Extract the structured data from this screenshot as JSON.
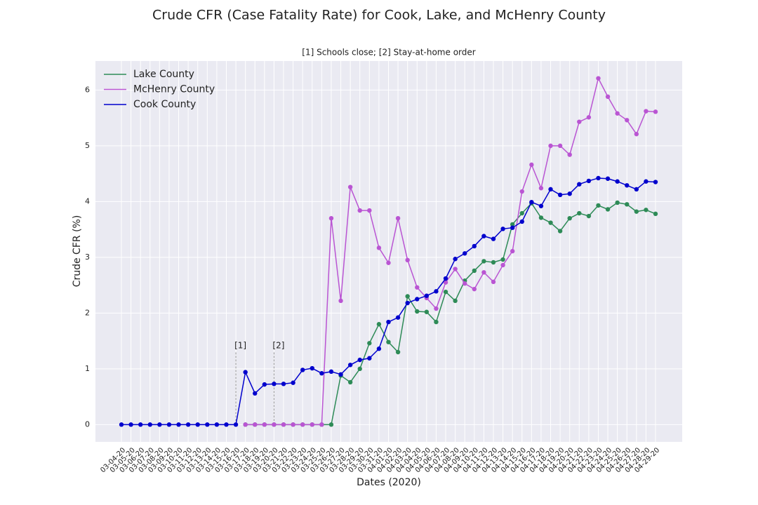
{
  "chart_data": {
    "type": "line",
    "title": "Crude CFR (Case Fatality Rate) for Cook, Lake, and McHenry County",
    "subtitle": "[1] Schools close; [2] Stay-at-home order",
    "x_label": "Dates (2020)",
    "y_label": "Crude CFR (%)",
    "categories": [
      "03-04-20",
      "03-05-20",
      "03-06-20",
      "03-07-20",
      "03-08-20",
      "03-09-20",
      "03-10-20",
      "03-11-20",
      "03-12-20",
      "03-13-20",
      "03-14-20",
      "03-15-20",
      "03-16-20",
      "03-17-20",
      "03-18-20",
      "03-19-20",
      "03-20-20",
      "03-21-20",
      "03-22-20",
      "03-23-20",
      "03-24-20",
      "03-25-20",
      "03-26-20",
      "03-27-20",
      "03-28-20",
      "03-29-20",
      "03-30-20",
      "03-31-20",
      "04-01-20",
      "04-02-20",
      "04-03-20",
      "04-04-20",
      "04-05-20",
      "04-06-20",
      "04-07-20",
      "04-08-20",
      "04-09-20",
      "04-10-20",
      "04-11-20",
      "04-12-20",
      "04-13-20",
      "04-14-20",
      "04-15-20",
      "04-16-20",
      "04-17-20",
      "04-18-20",
      "04-19-20",
      "04-20-20",
      "04-21-20",
      "04-22-20",
      "04-23-20",
      "04-24-20",
      "04-25-20",
      "04-26-20",
      "04-27-20",
      "04-28-20",
      "04-29-20"
    ],
    "series": [
      {
        "name": "Lake County",
        "color": "#2e8b57",
        "values": [
          null,
          null,
          null,
          null,
          null,
          null,
          null,
          null,
          null,
          null,
          null,
          null,
          null,
          0,
          0,
          0,
          0,
          0,
          0,
          0,
          0,
          0,
          0,
          0.88,
          0.76,
          1.0,
          1.46,
          1.8,
          1.48,
          1.3,
          2.3,
          2.03,
          2.02,
          1.84,
          2.38,
          2.22,
          2.58,
          2.76,
          2.93,
          2.91,
          2.96,
          3.59,
          3.79,
          3.97,
          3.71,
          3.62,
          3.47,
          3.7,
          3.79,
          3.74,
          3.93,
          3.86,
          3.98,
          3.95,
          3.82,
          3.85,
          3.78
        ]
      },
      {
        "name": "McHenry County",
        "color": "#ba55d3",
        "values": [
          null,
          null,
          null,
          null,
          null,
          null,
          null,
          null,
          null,
          null,
          null,
          null,
          null,
          0,
          0,
          0,
          0,
          0,
          0,
          0,
          0,
          0,
          3.7,
          2.22,
          4.26,
          3.84,
          3.84,
          3.17,
          2.9,
          3.7,
          2.95,
          2.46,
          2.27,
          2.08,
          2.55,
          2.79,
          2.53,
          2.43,
          2.73,
          2.56,
          2.86,
          3.11,
          4.18,
          4.66,
          4.24,
          5.0,
          5.0,
          4.84,
          5.43,
          5.51,
          6.21,
          5.88,
          5.58,
          5.46,
          5.21,
          5.62,
          5.61
        ]
      },
      {
        "name": "Cook County",
        "color": "#0000cd",
        "values": [
          0,
          0,
          0,
          0,
          0,
          0,
          0,
          0,
          0,
          0,
          0,
          0,
          0,
          0.94,
          0.56,
          0.72,
          0.73,
          0.73,
          0.75,
          0.98,
          1.01,
          0.92,
          0.95,
          0.9,
          1.07,
          1.16,
          1.19,
          1.36,
          1.84,
          1.92,
          2.18,
          2.25,
          2.31,
          2.39,
          2.62,
          2.97,
          3.07,
          3.2,
          3.38,
          3.33,
          3.51,
          3.53,
          3.64,
          3.99,
          3.92,
          4.22,
          4.12,
          4.14,
          4.31,
          4.37,
          4.42,
          4.41,
          4.36,
          4.29,
          4.22,
          4.36,
          4.35
        ]
      }
    ],
    "annotations": [
      {
        "text": "[1]",
        "x": "03-16-20"
      },
      {
        "text": "[2]",
        "x": "03-20-20"
      }
    ],
    "ylim": [
      -0.31,
      6.52
    ],
    "yticks": [
      0,
      1,
      2,
      3,
      4,
      5,
      6
    ],
    "grid": true,
    "legend": "upper left"
  }
}
